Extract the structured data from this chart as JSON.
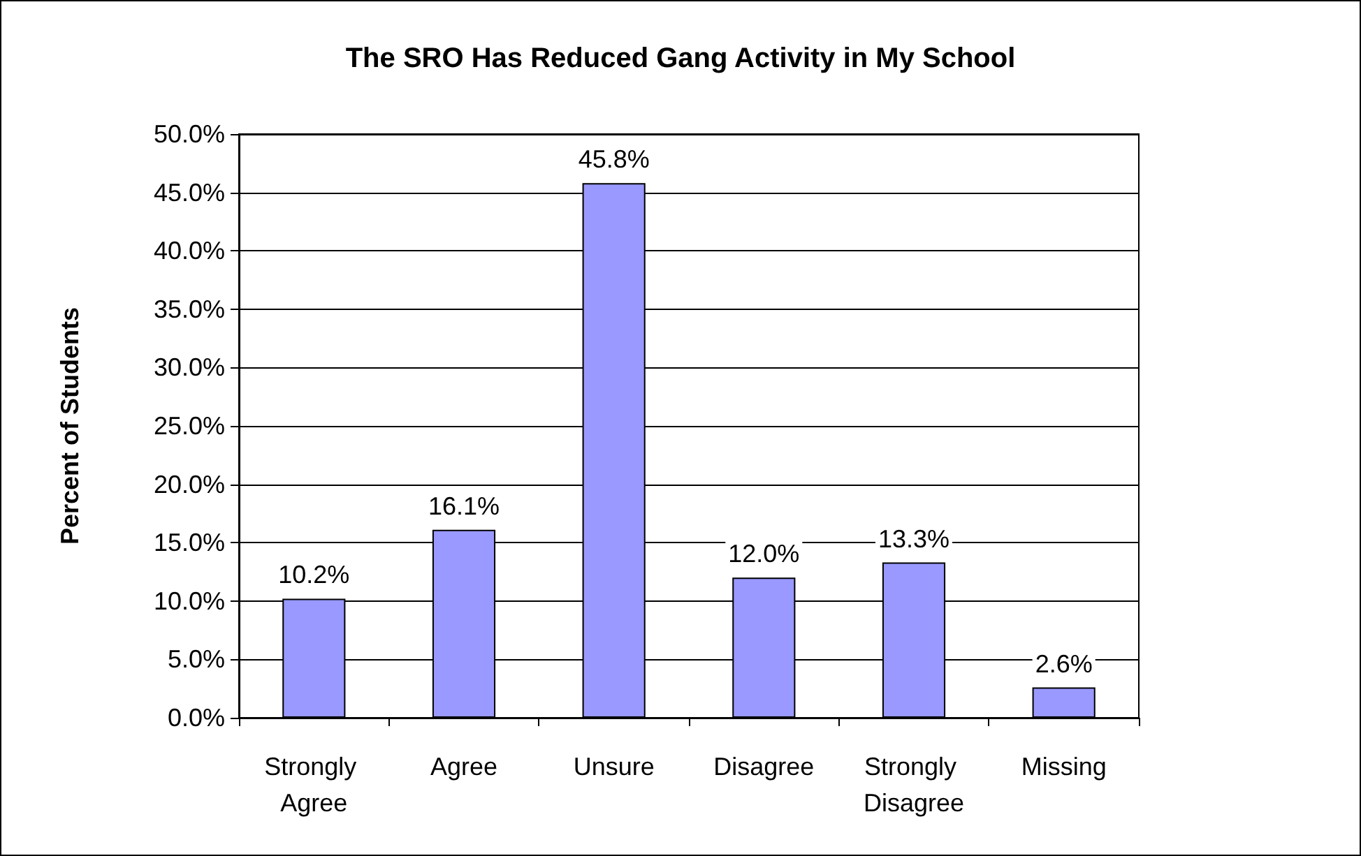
{
  "chart_data": {
    "type": "bar",
    "title": "The SRO Has Reduced Gang Activity in My School",
    "ylabel": "Percent of Students",
    "categories": [
      "Strongly Agree",
      "Agree",
      "Unsure",
      "Disagree",
      "Strongly Disagree",
      "Missing"
    ],
    "values": [
      10.2,
      16.1,
      45.8,
      12.0,
      13.3,
      2.6
    ],
    "value_labels": [
      "10.2%",
      "16.1%",
      "45.8%",
      "12.0%",
      "13.3%",
      "2.6%"
    ],
    "color": "#9999ff",
    "ylim": [
      0,
      50
    ],
    "yticks": [
      {
        "value": 0,
        "label": "0.0%"
      },
      {
        "value": 5,
        "label": "5.0%"
      },
      {
        "value": 10,
        "label": "10.0%"
      },
      {
        "value": 15,
        "label": "15.0%"
      },
      {
        "value": 20,
        "label": "20.0%"
      },
      {
        "value": 25,
        "label": "25.0%"
      },
      {
        "value": 30,
        "label": "30.0%"
      },
      {
        "value": 35,
        "label": "35.0%"
      },
      {
        "value": 40,
        "label": "40.0%"
      },
      {
        "value": 45,
        "label": "45.0%"
      },
      {
        "value": 50,
        "label": "50.0%"
      }
    ],
    "grid": "y"
  }
}
